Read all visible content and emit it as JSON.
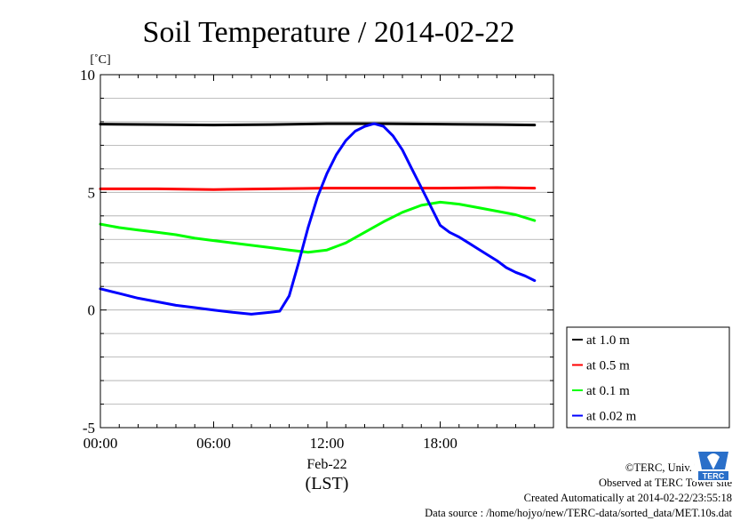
{
  "chart_data": {
    "type": "line",
    "title": "Soil Temperature / 2014-02-22",
    "ylabel": "[˚C]",
    "xlabel": "(LST)",
    "date_label": "Feb-22",
    "ylim": [
      -5,
      10
    ],
    "xlim": [
      0,
      23
    ],
    "x_unit": "hours",
    "yticks": [
      -5,
      0,
      5,
      10
    ],
    "xticks": [
      0,
      6,
      12,
      18
    ],
    "xtick_labels": [
      "00:00",
      "06:00",
      "12:00",
      "18:00"
    ],
    "grid": true,
    "legend_position": "right",
    "series": [
      {
        "name": "at 1.0 m",
        "color": "#000000",
        "points": [
          [
            0,
            7.9
          ],
          [
            3,
            7.88
          ],
          [
            6,
            7.86
          ],
          [
            9,
            7.88
          ],
          [
            12,
            7.92
          ],
          [
            15,
            7.92
          ],
          [
            18,
            7.9
          ],
          [
            21,
            7.88
          ],
          [
            23,
            7.86
          ]
        ]
      },
      {
        "name": "at 0.5 m",
        "color": "#ff0000",
        "points": [
          [
            0,
            5.15
          ],
          [
            3,
            5.15
          ],
          [
            6,
            5.12
          ],
          [
            9,
            5.15
          ],
          [
            12,
            5.18
          ],
          [
            15,
            5.18
          ],
          [
            18,
            5.18
          ],
          [
            21,
            5.2
          ],
          [
            23,
            5.18
          ]
        ]
      },
      {
        "name": "at 0.1 m",
        "color": "#00ff00",
        "points": [
          [
            0,
            3.65
          ],
          [
            1,
            3.5
          ],
          [
            2,
            3.4
          ],
          [
            3,
            3.3
          ],
          [
            4,
            3.2
          ],
          [
            5,
            3.05
          ],
          [
            6,
            2.95
          ],
          [
            7,
            2.85
          ],
          [
            8,
            2.75
          ],
          [
            9,
            2.65
          ],
          [
            10,
            2.55
          ],
          [
            11,
            2.45
          ],
          [
            12,
            2.55
          ],
          [
            13,
            2.85
          ],
          [
            14,
            3.3
          ],
          [
            15,
            3.75
          ],
          [
            16,
            4.15
          ],
          [
            17,
            4.45
          ],
          [
            18,
            4.58
          ],
          [
            19,
            4.5
          ],
          [
            20,
            4.35
          ],
          [
            21,
            4.2
          ],
          [
            22,
            4.05
          ],
          [
            23,
            3.8
          ]
        ]
      },
      {
        "name": "at 0.02 m",
        "color": "#0000ff",
        "points": [
          [
            0,
            0.9
          ],
          [
            1,
            0.7
          ],
          [
            2,
            0.5
          ],
          [
            3,
            0.35
          ],
          [
            4,
            0.2
          ],
          [
            5,
            0.1
          ],
          [
            6,
            0.0
          ],
          [
            7,
            -0.1
          ],
          [
            8,
            -0.18
          ],
          [
            9,
            -0.1
          ],
          [
            9.5,
            -0.05
          ],
          [
            10,
            0.6
          ],
          [
            10.5,
            2.0
          ],
          [
            11,
            3.5
          ],
          [
            11.5,
            4.8
          ],
          [
            12,
            5.8
          ],
          [
            12.5,
            6.6
          ],
          [
            13,
            7.2
          ],
          [
            13.5,
            7.6
          ],
          [
            14,
            7.8
          ],
          [
            14.5,
            7.92
          ],
          [
            15,
            7.8
          ],
          [
            15.5,
            7.4
          ],
          [
            16,
            6.8
          ],
          [
            16.5,
            6.0
          ],
          [
            17,
            5.2
          ],
          [
            17.5,
            4.4
          ],
          [
            18,
            3.6
          ],
          [
            18.5,
            3.3
          ],
          [
            19,
            3.1
          ],
          [
            19.5,
            2.85
          ],
          [
            20,
            2.6
          ],
          [
            20.5,
            2.35
          ],
          [
            21,
            2.1
          ],
          [
            21.5,
            1.8
          ],
          [
            22,
            1.6
          ],
          [
            22.5,
            1.45
          ],
          [
            23,
            1.25
          ]
        ]
      }
    ]
  },
  "footer": {
    "copyright": "©TERC, Univ. Tsukuba",
    "observed": "Observed at TERC Tower site",
    "created": "Created Automatically at 2014-02-22/23:55:18",
    "source": "Data source : /home/hojyo/new/TERC-data/sorted_data/MET.10s.dat"
  },
  "logo": {
    "text": "TERC"
  }
}
